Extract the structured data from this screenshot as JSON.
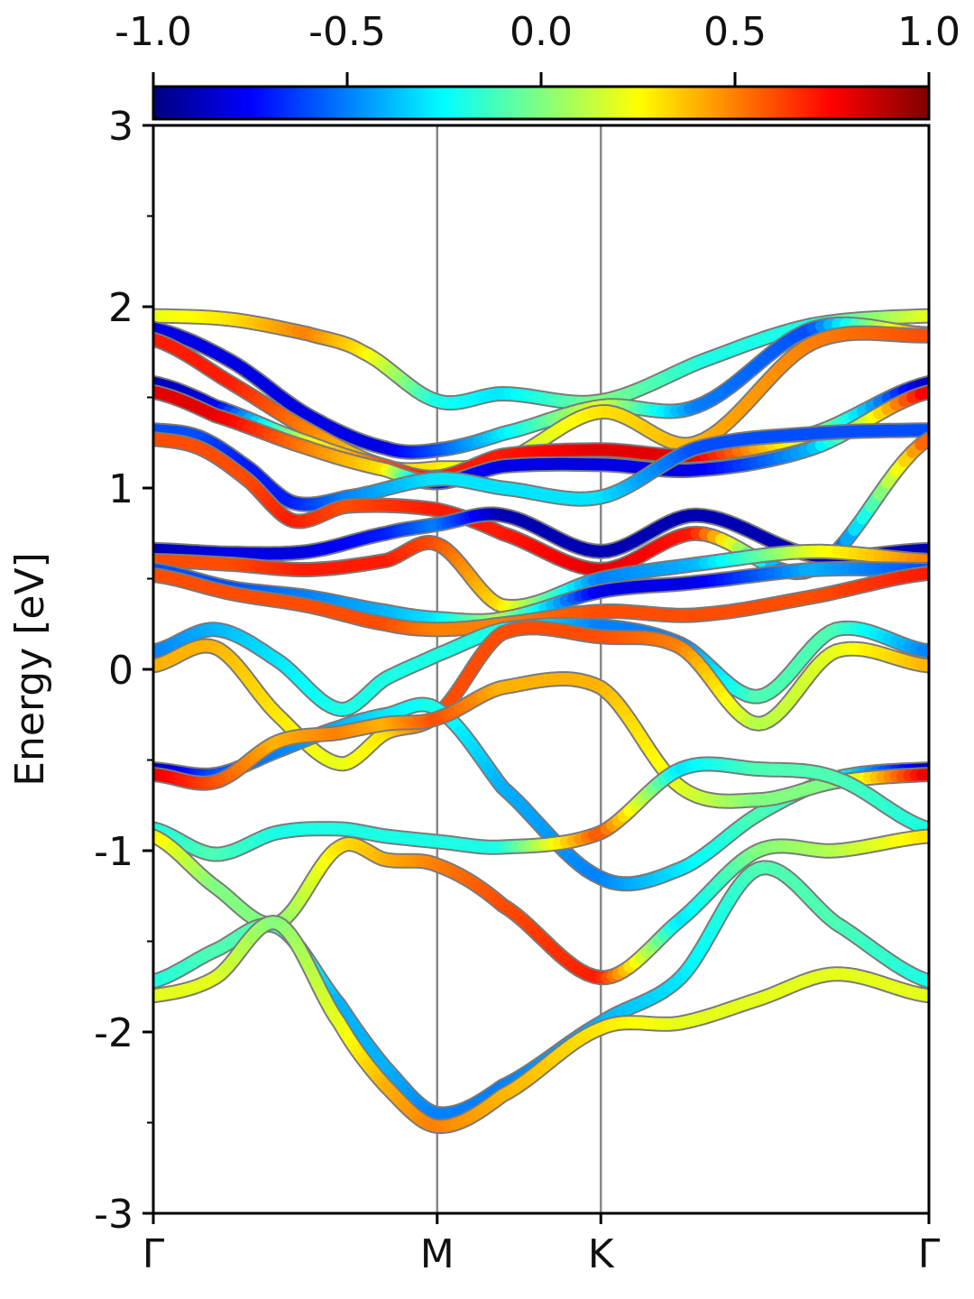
{
  "chart_data": {
    "type": "line",
    "title": "",
    "ylabel": "Energy [eV]",
    "xlabel": "",
    "ylim": [
      -3,
      3
    ],
    "yticks": [
      "3",
      "2",
      "1",
      "0",
      "-1",
      "-2",
      "-3"
    ],
    "yticks_values": [
      3,
      2,
      1,
      0,
      -1,
      -2,
      -3
    ],
    "yminor_ticks": [
      2.5,
      1.5,
      0.5,
      -0.5,
      -1.5,
      -2.5
    ],
    "xticks": [
      "Γ",
      "M",
      "K",
      "Γ"
    ],
    "xticks_positions": [
      0,
      0.366,
      0.577,
      1.0
    ],
    "vlines_at": [
      0.366,
      0.577
    ],
    "colorbar": {
      "range": [
        -1.0,
        1.0
      ],
      "colormap": "jet",
      "ticks": [
        "-1.0",
        "-0.5",
        "0.0",
        "0.5",
        "1.0"
      ],
      "ticks_values": [
        -1.0,
        -0.5,
        0.0,
        0.5,
        1.0
      ]
    },
    "series": [
      {
        "x": [
          0,
          0.1,
          0.2,
          0.27,
          0.366,
          0.45,
          0.577,
          0.72,
          0.85,
          1.0
        ],
        "y": [
          1.95,
          1.93,
          1.85,
          1.75,
          1.48,
          1.52,
          1.48,
          1.72,
          1.9,
          1.95
        ],
        "c": [
          0.2,
          0.3,
          0.5,
          0.3,
          -0.2,
          -0.3,
          0.0,
          -0.2,
          -0.2,
          0.2
        ]
      },
      {
        "x": [
          0,
          0.1,
          0.2,
          0.3,
          0.366,
          0.45,
          0.577,
          0.7,
          0.85,
          1.0
        ],
        "y": [
          1.88,
          1.7,
          1.4,
          1.22,
          1.21,
          1.3,
          1.45,
          1.45,
          1.88,
          1.85
        ],
        "c": [
          -0.8,
          -0.8,
          -0.8,
          -0.8,
          -0.6,
          -0.3,
          0.2,
          -0.5,
          -0.6,
          0.6
        ]
      },
      {
        "x": [
          0,
          0.1,
          0.2,
          0.3,
          0.366,
          0.45,
          0.577,
          0.7,
          0.85,
          1.0
        ],
        "y": [
          1.82,
          1.58,
          1.32,
          1.12,
          1.11,
          1.15,
          1.42,
          1.25,
          1.8,
          1.84
        ],
        "c": [
          0.7,
          0.7,
          0.5,
          0.3,
          0.3,
          0.1,
          0.3,
          0.4,
          0.5,
          0.6
        ]
      },
      {
        "x": [
          0,
          0.08,
          0.2,
          0.3,
          0.366,
          0.45,
          0.577,
          0.7,
          0.85,
          1.0
        ],
        "y": [
          1.58,
          1.45,
          1.25,
          1.12,
          1.06,
          1.18,
          1.21,
          1.18,
          1.3,
          1.58
        ],
        "c": [
          -0.9,
          -0.8,
          0.2,
          0.6,
          0.7,
          0.7,
          0.8,
          0.8,
          0.1,
          -0.9
        ]
      },
      {
        "x": [
          0,
          0.08,
          0.2,
          0.3,
          0.366,
          0.45,
          0.577,
          0.7,
          0.85,
          1.0
        ],
        "y": [
          1.53,
          1.4,
          1.22,
          1.1,
          1.03,
          1.12,
          1.13,
          1.1,
          1.22,
          1.53
        ],
        "c": [
          0.8,
          0.8,
          0.5,
          0.3,
          -0.7,
          -0.8,
          -0.8,
          -0.8,
          -0.4,
          0.8
        ]
      },
      {
        "x": [
          0,
          0.06,
          0.12,
          0.18,
          0.25,
          0.366,
          0.45,
          0.577,
          0.7,
          0.85,
          1.0
        ],
        "y": [
          1.32,
          1.28,
          1.12,
          0.92,
          0.95,
          1.05,
          1.0,
          0.95,
          1.22,
          1.3,
          1.32
        ],
        "c": [
          -0.6,
          -0.6,
          -0.7,
          -0.7,
          -0.5,
          -0.3,
          -0.3,
          -0.3,
          -0.6,
          -0.6,
          -0.6
        ]
      },
      {
        "x": [
          0,
          0.06,
          0.12,
          0.18,
          0.25,
          0.366,
          0.45,
          0.577,
          0.7,
          0.85,
          1.0
        ],
        "y": [
          1.27,
          1.22,
          1.05,
          0.82,
          0.9,
          0.88,
          0.75,
          0.55,
          0.75,
          0.55,
          1.27
        ],
        "c": [
          0.6,
          0.6,
          0.6,
          0.7,
          0.6,
          0.7,
          0.7,
          0.8,
          0.7,
          -0.9,
          0.6
        ]
      },
      {
        "x": [
          0,
          0.1,
          0.2,
          0.3,
          0.366,
          0.45,
          0.577,
          0.7,
          0.85,
          1.0
        ],
        "y": [
          0.66,
          0.64,
          0.65,
          0.75,
          0.8,
          0.85,
          0.65,
          0.85,
          0.63,
          0.66
        ],
        "c": [
          -0.9,
          -0.8,
          -0.8,
          -0.7,
          -0.5,
          -0.9,
          -0.9,
          -0.9,
          -0.9,
          -0.9
        ]
      },
      {
        "x": [
          0,
          0.1,
          0.2,
          0.3,
          0.366,
          0.45,
          0.577,
          0.7,
          0.85,
          1.0
        ],
        "y": [
          0.6,
          0.58,
          0.55,
          0.6,
          0.69,
          0.35,
          0.5,
          0.58,
          0.65,
          0.6
        ],
        "c": [
          0.6,
          0.6,
          0.7,
          0.7,
          0.6,
          0.3,
          -0.5,
          -0.4,
          0.2,
          0.5
        ]
      },
      {
        "x": [
          0,
          0.1,
          0.2,
          0.3,
          0.366,
          0.45,
          0.577,
          0.7,
          0.85,
          1.0
        ],
        "y": [
          0.55,
          0.45,
          0.4,
          0.32,
          0.28,
          0.28,
          0.43,
          0.48,
          0.55,
          0.55
        ],
        "c": [
          -0.6,
          -0.6,
          -0.5,
          -0.4,
          -0.3,
          0.1,
          -0.8,
          -0.8,
          -0.4,
          -0.6
        ]
      },
      {
        "x": [
          0,
          0.1,
          0.2,
          0.3,
          0.366,
          0.45,
          0.577,
          0.7,
          0.85,
          1.0
        ],
        "y": [
          0.52,
          0.42,
          0.35,
          0.25,
          0.22,
          0.25,
          0.32,
          0.3,
          0.4,
          0.53
        ],
        "c": [
          0.6,
          0.6,
          0.6,
          0.6,
          0.5,
          0.5,
          0.6,
          0.6,
          0.6,
          0.7
        ]
      },
      {
        "x": [
          0,
          0.08,
          0.16,
          0.24,
          0.3,
          0.366,
          0.45,
          0.577,
          0.68,
          0.78,
          0.88,
          1.0
        ],
        "y": [
          0.1,
          0.22,
          0.05,
          -0.22,
          -0.05,
          0.08,
          0.22,
          0.24,
          0.14,
          -0.15,
          0.22,
          0.1
        ],
        "c": [
          -0.5,
          -0.4,
          -0.3,
          -0.2,
          -0.2,
          -0.2,
          -0.2,
          -0.5,
          -0.5,
          -0.1,
          -0.1,
          -0.5
        ]
      },
      {
        "x": [
          0,
          0.08,
          0.16,
          0.24,
          0.3,
          0.366,
          0.45,
          0.577,
          0.68,
          0.78,
          0.88,
          1.0
        ],
        "y": [
          0.02,
          0.12,
          -0.25,
          -0.52,
          -0.35,
          -0.25,
          0.2,
          0.18,
          0.12,
          -0.3,
          0.1,
          0.02
        ],
        "c": [
          0.4,
          0.4,
          0.3,
          0.2,
          0.3,
          0.6,
          0.6,
          0.6,
          0.5,
          0.1,
          0.2,
          0.4
        ]
      },
      {
        "x": [
          0,
          0.08,
          0.16,
          0.24,
          0.3,
          0.366,
          0.45,
          0.577,
          0.68,
          0.78,
          0.88,
          1.0
        ],
        "y": [
          -0.55,
          -0.58,
          -0.45,
          -0.32,
          -0.25,
          -0.22,
          -0.65,
          -1.15,
          -1.1,
          -0.8,
          -0.6,
          -0.55
        ],
        "c": [
          -0.9,
          -0.6,
          -0.5,
          -0.4,
          -0.3,
          -0.2,
          -0.4,
          -0.5,
          -0.3,
          -0.1,
          -0.2,
          -0.9
        ]
      },
      {
        "x": [
          0,
          0.08,
          0.16,
          0.24,
          0.3,
          0.366,
          0.45,
          0.577,
          0.68,
          0.78,
          0.88,
          1.0
        ],
        "y": [
          -0.58,
          -0.62,
          -0.4,
          -0.35,
          -0.3,
          -0.27,
          -0.1,
          -0.1,
          -0.65,
          -0.72,
          -0.62,
          -0.58
        ],
        "c": [
          0.8,
          0.6,
          0.4,
          0.5,
          0.4,
          0.6,
          0.4,
          0.4,
          0.2,
          0.0,
          0.0,
          0.8
        ]
      },
      {
        "x": [
          0,
          0.08,
          0.16,
          0.24,
          0.3,
          0.366,
          0.45,
          0.577,
          0.68,
          0.78,
          0.88,
          1.0
        ],
        "y": [
          -0.88,
          -1.02,
          -0.9,
          -0.88,
          -0.92,
          -0.95,
          -0.98,
          -0.9,
          -0.55,
          -0.55,
          -0.6,
          -0.88
        ],
        "c": [
          -0.2,
          -0.1,
          -0.2,
          -0.2,
          -0.2,
          -0.2,
          -0.2,
          0.6,
          -0.3,
          -0.1,
          -0.1,
          -0.2
        ]
      },
      {
        "x": [
          0,
          0.08,
          0.16,
          0.24,
          0.3,
          0.366,
          0.45,
          0.577,
          0.68,
          0.78,
          0.88,
          1.0
        ],
        "y": [
          -0.92,
          -1.2,
          -1.4,
          -0.98,
          -1.05,
          -1.08,
          -1.3,
          -1.7,
          -1.38,
          -1.0,
          -1.0,
          -0.92
        ],
        "c": [
          0.3,
          0.0,
          0.0,
          0.3,
          0.4,
          0.5,
          0.6,
          0.7,
          -0.3,
          0.0,
          0.1,
          0.3
        ]
      },
      {
        "x": [
          0,
          0.08,
          0.16,
          0.24,
          0.3,
          0.366,
          0.45,
          0.577,
          0.68,
          0.78,
          0.88,
          1.0
        ],
        "y": [
          -1.72,
          -1.55,
          -1.42,
          -1.85,
          -2.2,
          -2.45,
          -2.3,
          -1.95,
          -1.7,
          -1.1,
          -1.4,
          -1.72
        ],
        "c": [
          -0.2,
          -0.1,
          -0.1,
          -0.4,
          -0.4,
          -0.5,
          -0.5,
          -0.4,
          -0.3,
          -0.1,
          -0.1,
          -0.2
        ]
      },
      {
        "x": [
          0,
          0.08,
          0.16,
          0.24,
          0.3,
          0.366,
          0.45,
          0.577,
          0.68,
          0.78,
          0.88,
          1.0
        ],
        "y": [
          -1.8,
          -1.7,
          -1.4,
          -1.95,
          -2.3,
          -2.52,
          -2.35,
          -1.98,
          -1.95,
          -1.82,
          -1.68,
          -1.8
        ],
        "c": [
          0.2,
          0.2,
          0.0,
          0.2,
          0.4,
          0.5,
          0.4,
          0.3,
          0.2,
          0.2,
          0.2,
          0.2
        ]
      }
    ]
  }
}
